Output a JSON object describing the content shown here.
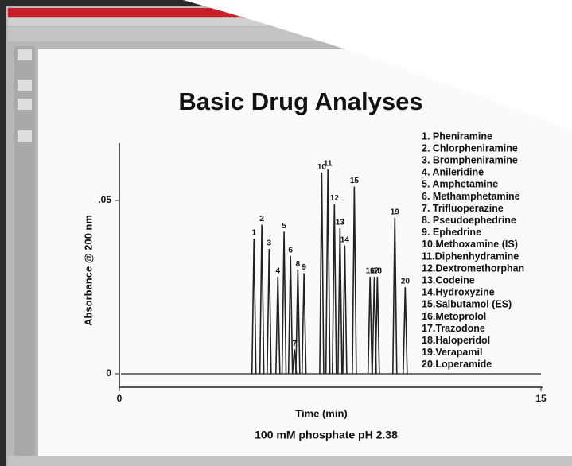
{
  "chart_data": {
    "type": "chromatogram",
    "title": "Basic Drug Analyses",
    "subtitle": "100 mM phosphate pH 2.38",
    "x_label": "Time (min)",
    "y_label": "Absorbance @ 200 nm",
    "xlim": [
      0,
      15
    ],
    "xticks": [
      0,
      15
    ],
    "ylim": [
      -0.003,
      0.065
    ],
    "yticks": [
      0,
      {
        "value": 0.05,
        "label": ".05"
      }
    ],
    "color": "#222222",
    "peaks": [
      {
        "label": "1",
        "rt": 4.79,
        "height": 0.039
      },
      {
        "label": "2",
        "rt": 5.07,
        "height": 0.043
      },
      {
        "label": "3",
        "rt": 5.33,
        "height": 0.036
      },
      {
        "label": "4",
        "rt": 5.64,
        "height": 0.028
      },
      {
        "label": "5",
        "rt": 5.86,
        "height": 0.041
      },
      {
        "label": "6",
        "rt": 6.09,
        "height": 0.034
      },
      {
        "label": "7",
        "rt": 6.23,
        "height": 0.007
      },
      {
        "label": "8",
        "rt": 6.35,
        "height": 0.03
      },
      {
        "label": "9",
        "rt": 6.57,
        "height": 0.029
      },
      {
        "label": "10",
        "rt": 7.2,
        "height": 0.058
      },
      {
        "label": "11",
        "rt": 7.42,
        "height": 0.059
      },
      {
        "label": "12",
        "rt": 7.65,
        "height": 0.049
      },
      {
        "label": "13",
        "rt": 7.85,
        "height": 0.042
      },
      {
        "label": "14",
        "rt": 8.02,
        "height": 0.037
      },
      {
        "label": "15",
        "rt": 8.36,
        "height": 0.054
      },
      {
        "label": "16",
        "rt": 8.92,
        "height": 0.028
      },
      {
        "label": "17",
        "rt": 9.07,
        "height": 0.028
      },
      {
        "label": "18",
        "rt": 9.18,
        "height": 0.028
      },
      {
        "label": "19",
        "rt": 9.8,
        "height": 0.045
      },
      {
        "label": "20",
        "rt": 10.17,
        "height": 0.025
      }
    ],
    "legend": [
      "1.  Pheniramine",
      "2.  Chlorpheniramine",
      "3.  Brompheniramine",
      "4.  Anileridine",
      "5.  Amphetamine",
      "6.  Methamphetamine",
      "7.  Trifluoperazine",
      "8.  Pseudoephedrine",
      "9.  Ephedrine",
      "10.Methoxamine (IS)",
      "11.Diphenhydramine",
      "12.Dextromethorphan",
      "13.Codeine",
      "14.Hydroxyzine",
      "15.Salbutamol (ES)",
      "16.Metoprolol",
      "17.Trazodone",
      "18.Haloperidol",
      "19.Verapamil",
      "20.Loperamide"
    ]
  }
}
